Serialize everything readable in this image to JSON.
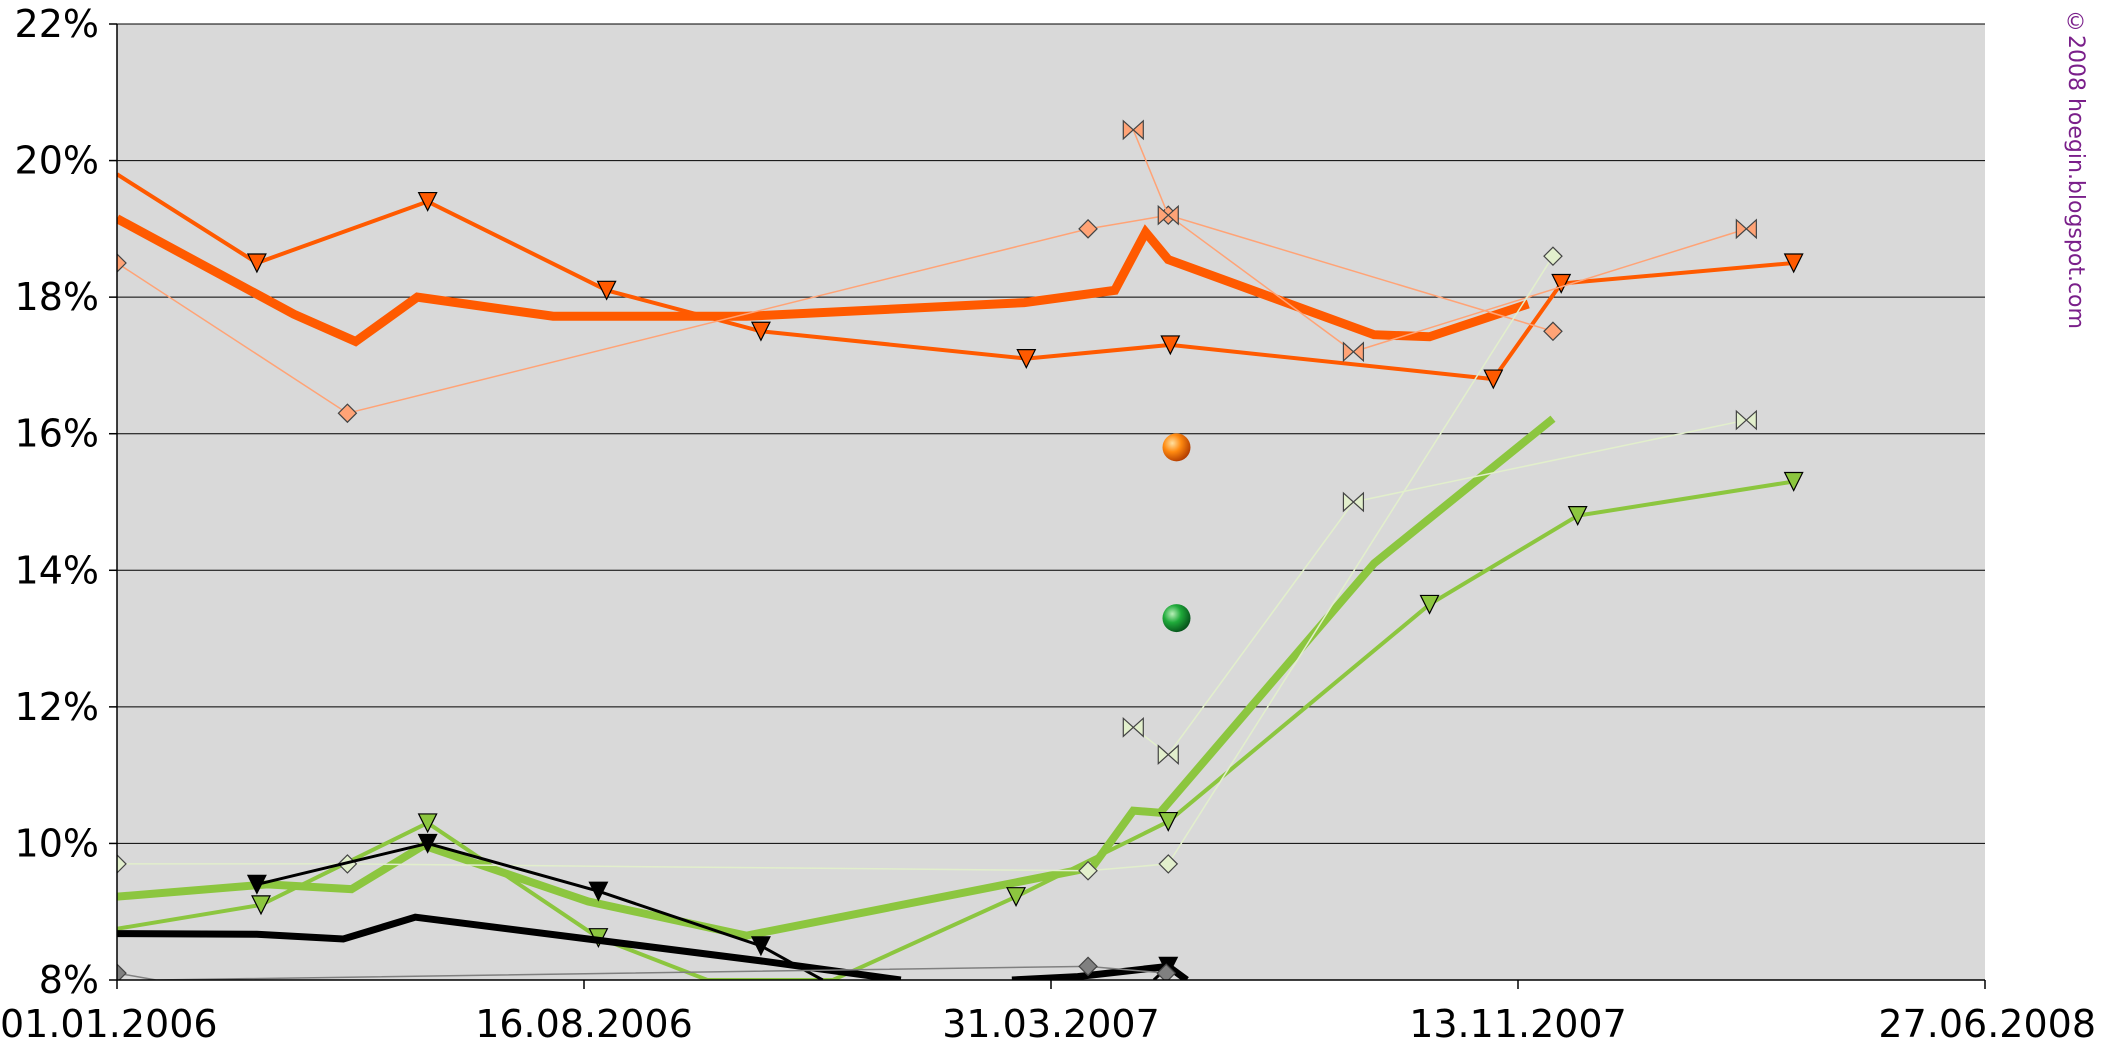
{
  "credit": "©2008 hoegin.blogspot.com",
  "chart_data": {
    "type": "line",
    "title": "",
    "xlabel": "",
    "ylabel": "",
    "x_axis": {
      "type": "date",
      "min": "2006-01-01",
      "max": "2008-06-27",
      "tick_labels": [
        "01.01.2006",
        "16.08.2006",
        "31.03.2007",
        "13.11.2007",
        "27.06.2008"
      ],
      "tick_dates": [
        "2006-01-01",
        "2006-08-16",
        "2007-03-31",
        "2007-11-13",
        "2008-06-27"
      ]
    },
    "y_axis": {
      "min": 8,
      "max": 22,
      "unit": "%",
      "tick_labels": [
        "8%",
        "10%",
        "12%",
        "14%",
        "16%",
        "18%",
        "20%",
        "22%"
      ],
      "tick_values": [
        8,
        10,
        12,
        14,
        16,
        18,
        20,
        22
      ]
    },
    "grid": true,
    "plot_background": "#d9d9d9",
    "series": [
      {
        "color": "#ff5a00",
        "width": 9,
        "marker": "none",
        "points": [
          [
            "2006-01-01",
            19.15
          ],
          [
            "2006-03-28",
            17.75
          ],
          [
            "2006-04-27",
            17.35
          ],
          [
            "2006-05-27",
            18.0
          ],
          [
            "2006-08-01",
            17.72
          ],
          [
            "2006-09-25",
            17.72
          ],
          [
            "2006-11-03",
            17.72
          ],
          [
            "2007-03-18",
            17.92
          ],
          [
            "2007-05-01",
            18.1
          ],
          [
            "2007-05-16",
            18.95
          ],
          [
            "2007-05-27",
            18.55
          ],
          [
            "2007-09-04",
            17.45
          ],
          [
            "2007-10-01",
            17.42
          ],
          [
            "2007-11-18",
            17.9
          ]
        ]
      },
      {
        "color": "#ff5a00",
        "width": 4,
        "marker": "triangle",
        "points": [
          [
            "2006-01-01",
            19.8
          ],
          [
            "2006-03-10",
            18.5
          ],
          [
            "2006-06-01",
            19.4
          ],
          [
            "2006-08-27",
            18.1
          ],
          [
            "2006-11-10",
            17.5
          ],
          [
            "2007-03-19",
            17.1
          ],
          [
            "2007-05-28",
            17.3
          ],
          [
            "2007-11-01",
            16.8
          ],
          [
            "2007-12-04",
            18.2
          ],
          [
            "2008-03-26",
            18.5
          ]
        ]
      },
      {
        "color": "#ffa376",
        "width": 1.5,
        "marker": "diamond",
        "points": [
          [
            "2006-01-01",
            18.5
          ],
          [
            "2006-04-23",
            16.3
          ],
          [
            "2007-04-18",
            19.0
          ],
          [
            "2007-05-27",
            19.2
          ],
          [
            "2007-11-30",
            17.5
          ]
        ]
      },
      {
        "color": "#ffa376",
        "width": 1.5,
        "marker": "bowtie",
        "points": [
          [
            "2007-05-10",
            20.45
          ],
          [
            "2007-05-27",
            19.2
          ],
          [
            "2007-08-25",
            17.2
          ],
          [
            "2008-03-03",
            19.0
          ]
        ]
      },
      {
        "color": "#8cc63f",
        "width": 8,
        "marker": "none",
        "points": [
          [
            "2006-01-01",
            9.22
          ],
          [
            "2006-03-15",
            9.4
          ],
          [
            "2006-04-25",
            9.33
          ],
          [
            "2006-05-30",
            9.97
          ],
          [
            "2006-08-18",
            9.15
          ],
          [
            "2006-11-03",
            8.65
          ],
          [
            "2007-04-20",
            9.65
          ],
          [
            "2007-05-10",
            10.48
          ],
          [
            "2007-05-23",
            10.45
          ],
          [
            "2007-09-04",
            14.1
          ],
          [
            "2007-11-30",
            16.22
          ]
        ]
      },
      {
        "color": "#8cc63f",
        "width": 4,
        "marker": "triangle",
        "points": [
          [
            "2006-01-01",
            8.75
          ],
          [
            "2006-03-12",
            9.1
          ],
          [
            "2006-06-01",
            10.3
          ],
          [
            "2006-08-23",
            8.62
          ],
          [
            "2006-10-15",
            8.0
          ],
          [
            "2006-12-15",
            8.0
          ],
          [
            "2007-03-14",
            9.22
          ],
          [
            "2007-05-27",
            10.32
          ],
          [
            "2007-10-01",
            13.5
          ],
          [
            "2007-12-12",
            14.8
          ],
          [
            "2008-03-26",
            15.3
          ]
        ]
      },
      {
        "color": "#e2efcc",
        "width": 1.5,
        "marker": "diamond",
        "points": [
          [
            "2006-01-01",
            9.7
          ],
          [
            "2006-04-23",
            9.7
          ],
          [
            "2007-04-18",
            9.6
          ],
          [
            "2007-05-27",
            9.7
          ],
          [
            "2007-11-30",
            18.6
          ]
        ]
      },
      {
        "color": "#e2efcc",
        "width": 1.5,
        "marker": "bowtie",
        "points": [
          [
            "2007-05-10",
            11.7
          ],
          [
            "2007-05-27",
            11.3
          ],
          [
            "2007-08-25",
            15.0
          ],
          [
            "2008-03-03",
            16.2
          ]
        ]
      },
      {
        "color": "#000000",
        "width": 7,
        "marker": "none",
        "points": [
          [
            "2006-01-01",
            8.68
          ],
          [
            "2006-03-10",
            8.67
          ],
          [
            "2006-04-21",
            8.6
          ],
          [
            "2006-05-26",
            8.92
          ],
          [
            "2006-08-18",
            8.6
          ],
          [
            "2006-11-10",
            8.28
          ],
          [
            "2007-01-05",
            8.05
          ],
          [
            "2007-01-17",
            8.0
          ]
        ]
      },
      {
        "color": "#000000",
        "width": 7,
        "marker": "none",
        "points": [
          [
            "2007-03-12",
            8.0
          ],
          [
            "2007-04-13",
            8.05
          ],
          [
            "2007-05-27",
            8.2
          ],
          [
            "2007-06-05",
            8.0
          ]
        ]
      },
      {
        "color": "#000000",
        "width": 3,
        "marker": "triangle",
        "points": [
          [
            "2006-03-10",
            9.4
          ],
          [
            "2006-06-01",
            10.0
          ],
          [
            "2006-08-23",
            9.3
          ],
          [
            "2006-11-10",
            8.5
          ],
          [
            "2006-12-10",
            8.0
          ]
        ]
      },
      {
        "color": "#000000",
        "width": 3,
        "marker": "triangle",
        "points": [
          [
            "2007-05-20",
            8.0
          ],
          [
            "2007-05-27",
            8.2
          ],
          [
            "2007-06-05",
            8.0
          ]
        ]
      },
      {
        "color": "#808080",
        "width": 1.5,
        "marker": "diamond",
        "points": [
          [
            "2006-01-01",
            8.1
          ],
          [
            "2006-01-20",
            8.0
          ],
          [
            "2007-04-18",
            8.2
          ],
          [
            "2007-05-26",
            8.1
          ]
        ]
      }
    ],
    "annotations": [
      {
        "shape": "ball",
        "color": "#ff7a00",
        "x": "2007-05-31",
        "y": 15.8
      },
      {
        "shape": "ball",
        "color": "#1aaa3a",
        "x": "2007-05-31",
        "y": 13.3
      }
    ]
  }
}
